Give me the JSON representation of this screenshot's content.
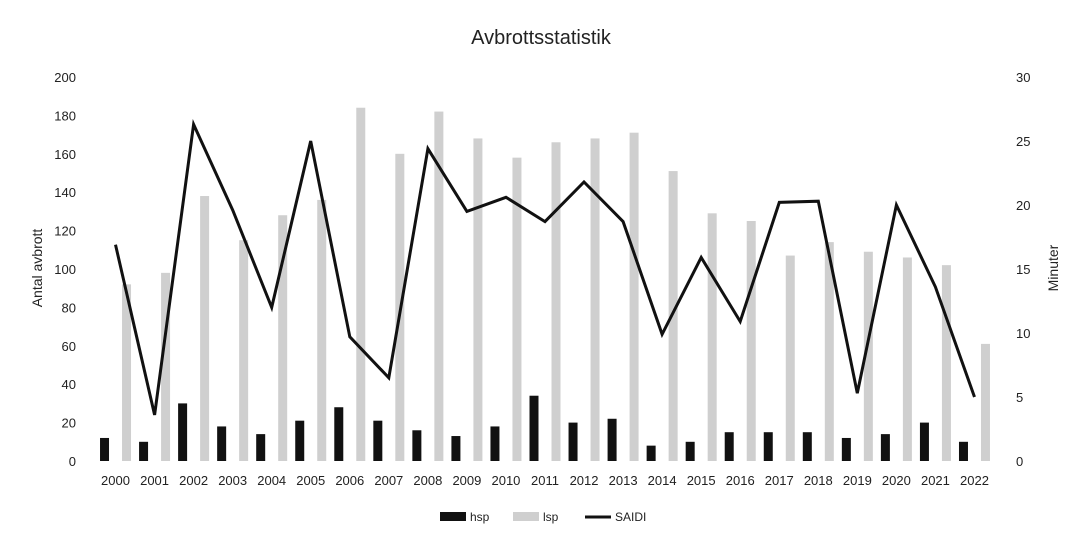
{
  "chart_data": {
    "type": "bar",
    "title": "Avbrottsstatistik",
    "xlabel": "",
    "ylabel": "Antal avbrott",
    "y2label": "Minuter",
    "ylim": [
      0,
      200
    ],
    "y2lim": [
      0,
      30
    ],
    "yticks": [
      "0",
      "20",
      "40",
      "60",
      "80",
      "100",
      "120",
      "140",
      "160",
      "180",
      "200"
    ],
    "y2ticks": [
      "0",
      "5",
      "10",
      "15",
      "20",
      "25",
      "30"
    ],
    "grid": false,
    "legend_position": "bottom",
    "categories": [
      "2000",
      "2001",
      "2002",
      "2003",
      "2004",
      "2005",
      "2006",
      "2007",
      "2008",
      "2009",
      "2010",
      "2011",
      "2012",
      "2013",
      "2014",
      "2015",
      "2016",
      "2017",
      "2018",
      "2019",
      "2020",
      "2021",
      "2022"
    ],
    "series": [
      {
        "name": "hsp",
        "kind": "bar",
        "axis": "left",
        "color": "#111111",
        "values": [
          12,
          10,
          30,
          18,
          14,
          21,
          28,
          21,
          16,
          13,
          18,
          34,
          20,
          22,
          8,
          10,
          15,
          15,
          15,
          12,
          14,
          20,
          10
        ]
      },
      {
        "name": "lsp",
        "kind": "bar",
        "axis": "left",
        "color": "#cfcfcf",
        "values": [
          92,
          98,
          138,
          115,
          128,
          136,
          184,
          160,
          182,
          168,
          158,
          166,
          168,
          171,
          151,
          129,
          125,
          107,
          114,
          109,
          106,
          102,
          61
        ]
      },
      {
        "name": "SAIDI",
        "kind": "line",
        "axis": "right",
        "color": "#111111",
        "values": [
          16.9,
          3.6,
          26.3,
          19.6,
          12.0,
          25.0,
          9.7,
          6.5,
          24.4,
          19.5,
          20.6,
          18.7,
          21.8,
          18.7,
          9.9,
          15.9,
          10.9,
          20.2,
          20.3,
          5.3,
          20.0,
          13.6,
          5.0
        ]
      }
    ]
  }
}
